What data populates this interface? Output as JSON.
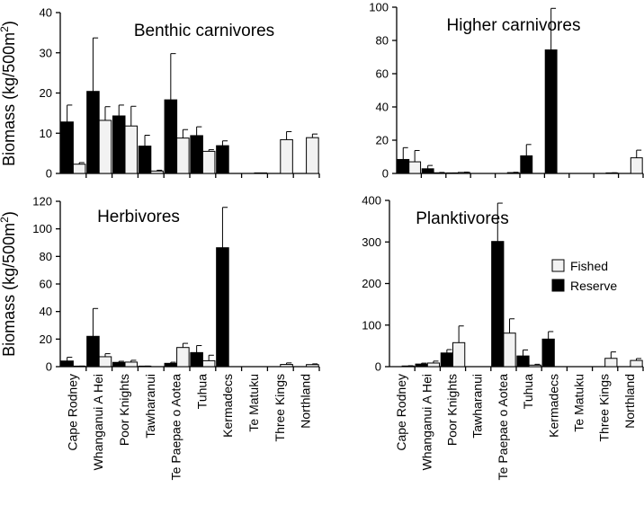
{
  "ylabel_main": "Biomass (kg/500m",
  "ylabel_sup": "2",
  "ylabel_end": ")",
  "legend": [
    {
      "label": "Fished",
      "color": "#f2f2f2"
    },
    {
      "label": "Reserve",
      "color": "#000000"
    }
  ],
  "chart_data": [
    {
      "type": "bar",
      "title": "Benthic carnivores",
      "ylim": [
        0,
        40
      ],
      "yticks": [
        0,
        10,
        20,
        30,
        40
      ],
      "categories": [
        "Cape Rodney",
        "Whanganui A Hei",
        "Poor Knights",
        "Tawharanui",
        "Te Paepae o Aotea",
        "Tuhua",
        "Kermadecs",
        "Te Matuku",
        "Three Kings",
        "Northland"
      ],
      "bars": [
        {
          "cat": "Cape Rodney",
          "series": "Reserve",
          "value": 12.8,
          "err": 4.2
        },
        {
          "cat": "Cape Rodney",
          "series": "Fished",
          "value": 2.3,
          "err": 0.4
        },
        {
          "cat": "Whanganui A Hei",
          "series": "Reserve",
          "value": 20.4,
          "err": 13.3
        },
        {
          "cat": "Whanganui A Hei",
          "series": "Fished",
          "value": 13.2,
          "err": 3.4
        },
        {
          "cat": "Poor Knights",
          "series": "Reserve",
          "value": 14.3,
          "err": 2.7
        },
        {
          "cat": "Poor Knights",
          "series": "Fished",
          "value": 11.8,
          "err": 4.9
        },
        {
          "cat": "Tawharanui",
          "series": "Reserve",
          "value": 6.8,
          "err": 2.7
        },
        {
          "cat": "Tawharanui",
          "series": "Fished",
          "value": 0.6,
          "err": 0.2
        },
        {
          "cat": "Te Paepae o Aotea",
          "series": "Reserve",
          "value": 18.3,
          "err": 11.5
        },
        {
          "cat": "Te Paepae o Aotea",
          "series": "Fished",
          "value": 8.8,
          "err": 2.1
        },
        {
          "cat": "Tuhua",
          "series": "Reserve",
          "value": 9.4,
          "err": 2.2
        },
        {
          "cat": "Tuhua",
          "series": "Fished",
          "value": 5.5,
          "err": 0.4
        },
        {
          "cat": "Kermadecs",
          "series": "Reserve",
          "value": 6.9,
          "err": 1.2
        },
        {
          "cat": "Te Matuku",
          "series": "Fished",
          "value": 0.1,
          "err": 0
        },
        {
          "cat": "Three Kings",
          "series": "Fished",
          "value": 8.4,
          "err": 2.0
        },
        {
          "cat": "Northland",
          "series": "Fished",
          "value": 8.9,
          "err": 0.9
        }
      ]
    },
    {
      "type": "bar",
      "title": "Higher carnivores",
      "ylim": [
        0,
        100
      ],
      "yticks": [
        0,
        20,
        40,
        60,
        80,
        100
      ],
      "categories": [
        "Cape Rodney",
        "Whanganui A Hei",
        "Poor Knights",
        "Tawharanui",
        "Te Paepae o Aotea",
        "Tuhua",
        "Kermadecs",
        "Te Matuku",
        "Three Kings",
        "Northland"
      ],
      "bars": [
        {
          "cat": "Cape Rodney",
          "series": "Reserve",
          "value": 8.4,
          "err": 7.1
        },
        {
          "cat": "Cape Rodney",
          "series": "Fished",
          "value": 7.0,
          "err": 6.8
        },
        {
          "cat": "Whanganui A Hei",
          "series": "Reserve",
          "value": 2.8,
          "err": 2.0
        },
        {
          "cat": "Whanganui A Hei",
          "series": "Fished",
          "value": 0.4,
          "err": 0.2
        },
        {
          "cat": "Poor Knights",
          "series": "Reserve",
          "value": 0.2,
          "err": 0.1
        },
        {
          "cat": "Poor Knights",
          "series": "Fished",
          "value": 0.6,
          "err": 0.2
        },
        {
          "cat": "Te Paepae o Aotea",
          "series": "Fished",
          "value": 0.5,
          "err": 0.2
        },
        {
          "cat": "Tuhua",
          "series": "Reserve",
          "value": 10.6,
          "err": 6.8
        },
        {
          "cat": "Kermadecs",
          "series": "Reserve",
          "value": 74.3,
          "err": 25.0
        },
        {
          "cat": "Three Kings",
          "series": "Fished",
          "value": 0.3,
          "err": 0.1
        },
        {
          "cat": "Northland",
          "series": "Fished",
          "value": 9.4,
          "err": 4.6
        }
      ]
    },
    {
      "type": "bar",
      "title": "Herbivores",
      "ylim": [
        0,
        120
      ],
      "yticks": [
        0,
        20,
        40,
        60,
        80,
        100,
        120
      ],
      "categories": [
        "Cape Rodney",
        "Whanganui A Hei",
        "Poor Knights",
        "Tawharanui",
        "Te Paepae o Aotea",
        "Tuhua",
        "Kermadecs",
        "Te Matuku",
        "Three Kings",
        "Northland"
      ],
      "bars": [
        {
          "cat": "Cape Rodney",
          "series": "Reserve",
          "value": 4.1,
          "err": 2.7
        },
        {
          "cat": "Cape Rodney",
          "series": "Fished",
          "value": 0.3,
          "err": 0.1
        },
        {
          "cat": "Whanganui A Hei",
          "series": "Reserve",
          "value": 22.0,
          "err": 20.2
        },
        {
          "cat": "Whanganui A Hei",
          "series": "Fished",
          "value": 7.2,
          "err": 2.2
        },
        {
          "cat": "Poor Knights",
          "series": "Reserve",
          "value": 3.1,
          "err": 0.8
        },
        {
          "cat": "Poor Knights",
          "series": "Fished",
          "value": 3.3,
          "err": 1.3
        },
        {
          "cat": "Tawharanui",
          "series": "Reserve",
          "value": 0.3,
          "err": 0.1
        },
        {
          "cat": "Te Paepae o Aotea",
          "series": "Reserve",
          "value": 2.4,
          "err": 0.8
        },
        {
          "cat": "Te Paepae o Aotea",
          "series": "Fished",
          "value": 13.9,
          "err": 3.0
        },
        {
          "cat": "Tuhua",
          "series": "Reserve",
          "value": 10.2,
          "err": 5.1
        },
        {
          "cat": "Tuhua",
          "series": "Fished",
          "value": 4.3,
          "err": 4.0
        },
        {
          "cat": "Kermadecs",
          "series": "Reserve",
          "value": 86.3,
          "err": 29.3
        },
        {
          "cat": "Three Kings",
          "series": "Fished",
          "value": 1.6,
          "err": 1.1
        },
        {
          "cat": "Northland",
          "series": "Fished",
          "value": 1.5,
          "err": 0.5
        }
      ]
    },
    {
      "type": "bar",
      "title": "Planktivores",
      "ylim": [
        0,
        400
      ],
      "yticks": [
        0,
        100,
        200,
        300,
        400
      ],
      "categories": [
        "Cape Rodney",
        "Whanganui A Hei",
        "Poor Knights",
        "Tawharanui",
        "Te Paepae o Aotea",
        "Tuhua",
        "Kermadecs",
        "Te Matuku",
        "Three Kings",
        "Northland"
      ],
      "bars": [
        {
          "cat": "Cape Rodney",
          "series": "Fished",
          "value": 1.6,
          "err": 0.6
        },
        {
          "cat": "Whanganui A Hei",
          "series": "Reserve",
          "value": 6.2,
          "err": 2.2
        },
        {
          "cat": "Whanganui A Hei",
          "series": "Fished",
          "value": 8.7,
          "err": 4.6
        },
        {
          "cat": "Poor Knights",
          "series": "Reserve",
          "value": 32.9,
          "err": 8.1
        },
        {
          "cat": "Poor Knights",
          "series": "Fished",
          "value": 57.7,
          "err": 40.2
        },
        {
          "cat": "Te Paepae o Aotea",
          "series": "Reserve",
          "value": 301.2,
          "err": 92.2
        },
        {
          "cat": "Te Paepae o Aotea",
          "series": "Fished",
          "value": 80.7,
          "err": 34.4
        },
        {
          "cat": "Tuhua",
          "series": "Reserve",
          "value": 25.7,
          "err": 14.5
        },
        {
          "cat": "Tuhua",
          "series": "Fished",
          "value": 3.7,
          "err": 2.0
        },
        {
          "cat": "Kermadecs",
          "series": "Reserve",
          "value": 66.3,
          "err": 18.1
        },
        {
          "cat": "Three Kings",
          "series": "Fished",
          "value": 20.0,
          "err": 15.4
        },
        {
          "cat": "Northland",
          "series": "Fished",
          "value": 14.9,
          "err": 4.6
        }
      ]
    }
  ]
}
